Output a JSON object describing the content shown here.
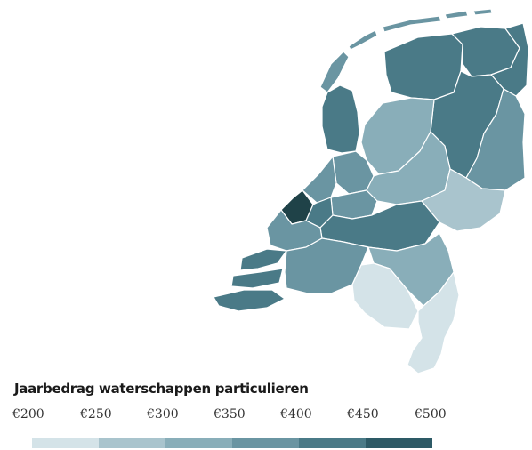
{
  "legend": {
    "title": "Jaarbedrag waterschappen particulieren",
    "labels": [
      "€200",
      "€250",
      "€300",
      "€350",
      "€400",
      "€450",
      "€500"
    ],
    "colors": [
      "#d4e3e8",
      "#a9c4cd",
      "#89aeb9",
      "#6a95a2",
      "#4a7a87",
      "#2d5a66",
      "#1f4248"
    ]
  },
  "map": {
    "regions": [
      {
        "id": "noorderzijlvest",
        "value": 400
      },
      {
        "id": "hunze-en-aas",
        "value": 400
      },
      {
        "id": "wetterskip-fryslan",
        "value": 400
      },
      {
        "id": "hollands-noorderkwartier",
        "value": 400
      },
      {
        "id": "drents-overijsselse-delta",
        "value": 400
      },
      {
        "id": "vechtstromen",
        "value": 350
      },
      {
        "id": "zuiderzeeland",
        "value": 300
      },
      {
        "id": "vallei-en-veluwe",
        "value": 300
      },
      {
        "id": "rijn-en-ijssel",
        "value": 300
      },
      {
        "id": "amstel-gooi-en-vecht",
        "value": 350
      },
      {
        "id": "rijnland",
        "value": 350
      },
      {
        "id": "stichtse-rijnlanden",
        "value": 350
      },
      {
        "id": "delfland",
        "value": 500
      },
      {
        "id": "schieland",
        "value": 400
      },
      {
        "id": "hollandse-delta",
        "value": 350
      },
      {
        "id": "rivierenland",
        "value": 400
      },
      {
        "id": "scheldestromen",
        "value": 400
      },
      {
        "id": "brabantse-delta",
        "value": 350
      },
      {
        "id": "de-dommel",
        "value": 250
      },
      {
        "id": "aa-en-maas",
        "value": 300
      },
      {
        "id": "limburg",
        "value": 250
      }
    ]
  }
}
